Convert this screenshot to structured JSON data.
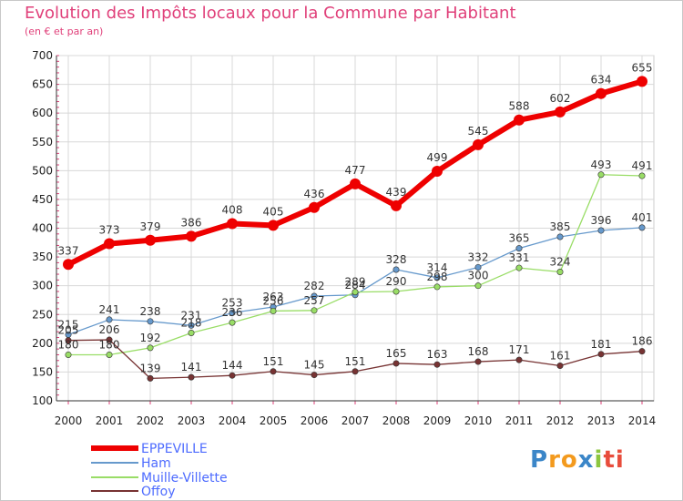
{
  "header": {
    "title": "Evolution des Impôts locaux pour la Commune par Habitant",
    "subtitle": "(en € et par an)"
  },
  "logo": {
    "text": "Proxiti",
    "letters": [
      "P",
      "r",
      "o",
      "x",
      "i",
      "ti"
    ]
  },
  "chart_data": {
    "type": "line",
    "title": "Evolution des Impôts locaux pour la Commune par Habitant",
    "subtitle": "(en € et par an)",
    "xlabel": "",
    "ylabel": "",
    "x": [
      2000,
      2001,
      2002,
      2003,
      2004,
      2005,
      2006,
      2007,
      2008,
      2009,
      2010,
      2011,
      2012,
      2013,
      2014
    ],
    "ylim": [
      100,
      700
    ],
    "yticks": [
      100,
      150,
      200,
      250,
      300,
      350,
      400,
      450,
      500,
      550,
      600,
      650,
      700
    ],
    "grid": true,
    "legend_position": "bottom-left",
    "series": [
      {
        "name": "EPPEVILLE",
        "color": "#ee0000",
        "values": [
          337,
          373,
          379,
          386,
          408,
          405,
          436,
          477,
          439,
          499,
          545,
          588,
          602,
          634,
          655
        ]
      },
      {
        "name": "Ham",
        "color": "#6699cc",
        "values": [
          215,
          241,
          238,
          231,
          253,
          263,
          282,
          284,
          328,
          314,
          332,
          365,
          385,
          396,
          401
        ]
      },
      {
        "name": "Muille-Villette",
        "color": "#99dd66",
        "values": [
          180,
          180,
          192,
          218,
          236,
          256,
          257,
          289,
          290,
          298,
          300,
          331,
          324,
          493,
          491
        ]
      },
      {
        "name": "Offoy",
        "color": "#773333",
        "values": [
          205,
          206,
          139,
          141,
          144,
          151,
          145,
          151,
          165,
          163,
          168,
          171,
          161,
          181,
          186
        ]
      }
    ]
  }
}
